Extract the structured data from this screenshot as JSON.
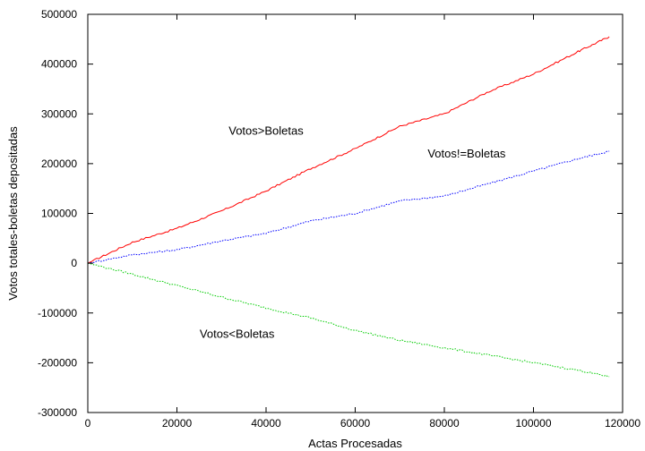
{
  "chart_data": {
    "type": "line",
    "title": "",
    "xlabel": "Actas Procesadas",
    "ylabel": "Votos totales-boletas depositadas",
    "xlim": [
      0,
      120000
    ],
    "ylim": [
      -300000,
      500000
    ],
    "x_ticks": [
      0,
      20000,
      40000,
      60000,
      80000,
      100000,
      120000
    ],
    "y_ticks": [
      -300000,
      -200000,
      -100000,
      0,
      100000,
      200000,
      300000,
      400000,
      500000
    ],
    "grid": false,
    "legend": "none",
    "series": [
      {
        "color": "#ff0000",
        "style": "solid",
        "x": [
          0,
          10000,
          20000,
          30000,
          40000,
          50000,
          60000,
          70000,
          80000,
          90000,
          100000,
          110000,
          117000
        ],
        "y": [
          0,
          42000,
          70000,
          105000,
          145000,
          190000,
          230000,
          275000,
          300000,
          345000,
          380000,
          425000,
          455000
        ]
      },
      {
        "color": "#0000ff",
        "style": "dotted",
        "x": [
          0,
          10000,
          20000,
          30000,
          40000,
          50000,
          60000,
          70000,
          80000,
          90000,
          100000,
          110000,
          117000
        ],
        "y": [
          0,
          17000,
          27000,
          45000,
          60000,
          85000,
          100000,
          125000,
          135000,
          160000,
          185000,
          210000,
          225000
        ]
      },
      {
        "color": "#00cc00",
        "style": "dotted",
        "x": [
          0,
          10000,
          20000,
          30000,
          40000,
          50000,
          60000,
          70000,
          80000,
          90000,
          100000,
          110000,
          117000
        ],
        "y": [
          0,
          -22000,
          -45000,
          -68000,
          -90000,
          -110000,
          -135000,
          -155000,
          -170000,
          -185000,
          -200000,
          -215000,
          -228000
        ]
      }
    ],
    "annotations": [
      {
        "text": "Votos>Boletas",
        "x": 40000,
        "y": 258000
      },
      {
        "text": "Votos!=Boletas",
        "x": 85000,
        "y": 212000
      },
      {
        "text": "Votos<Boletas",
        "x": 33500,
        "y": -150000
      }
    ]
  }
}
